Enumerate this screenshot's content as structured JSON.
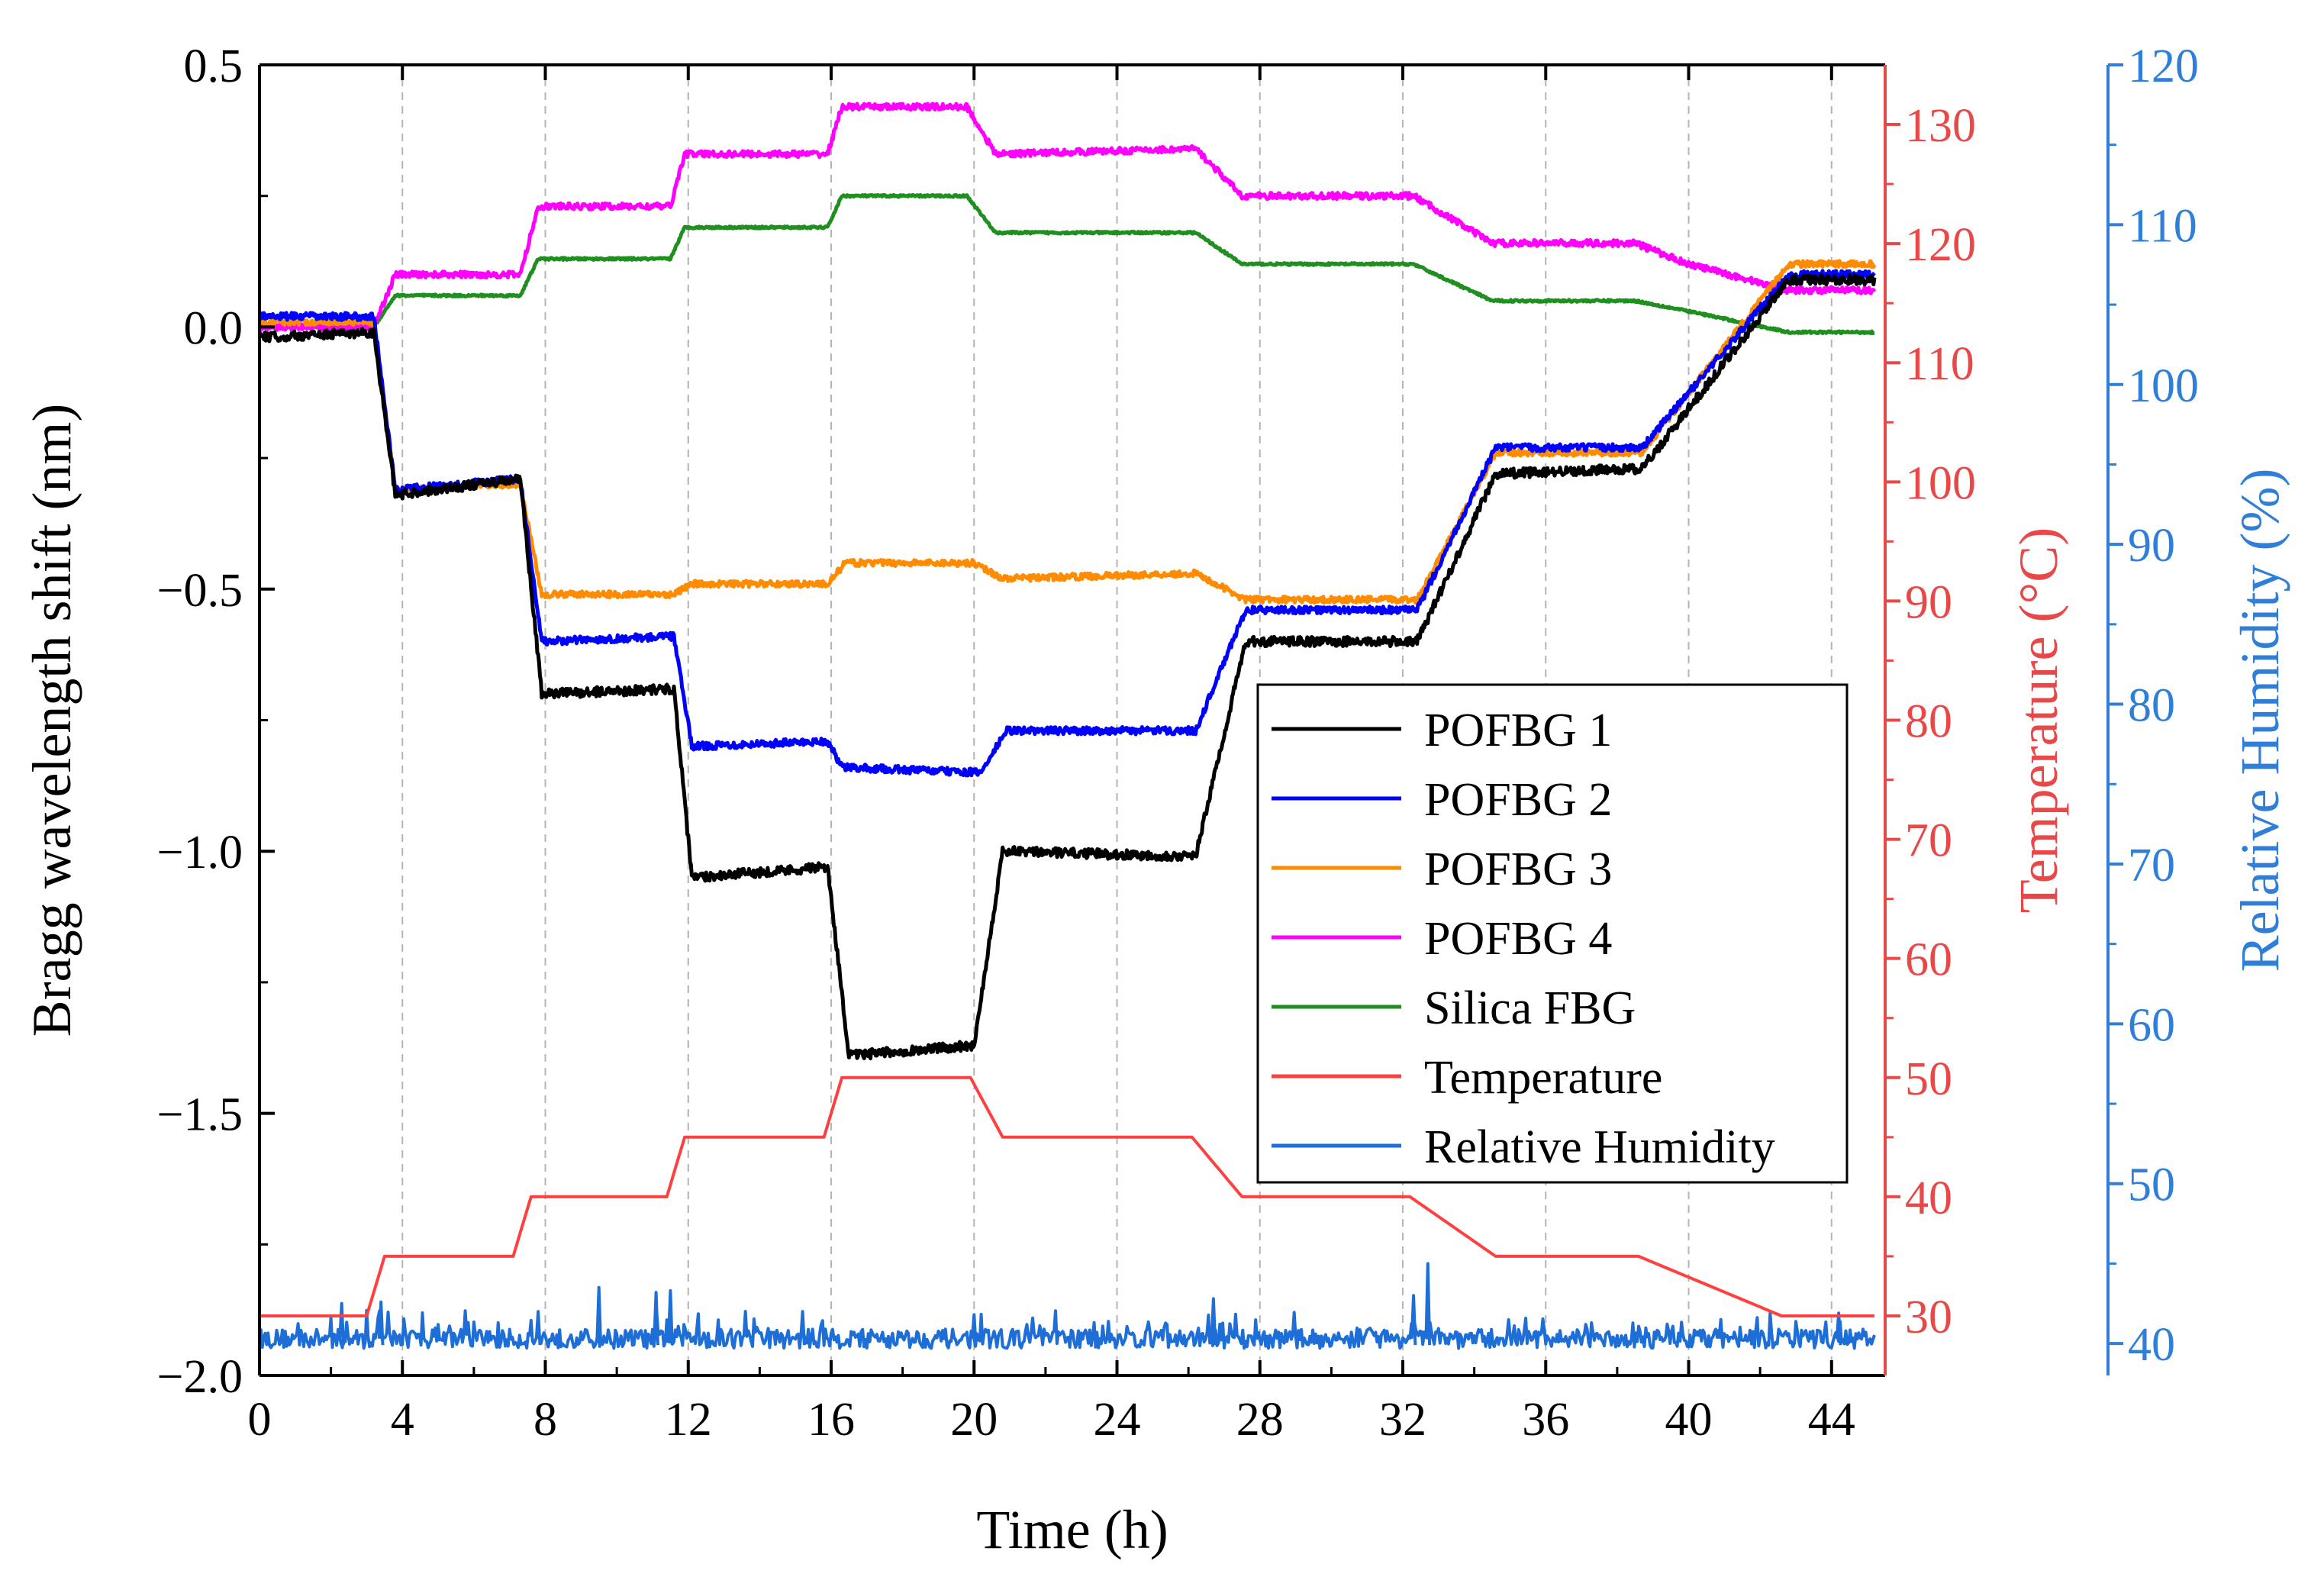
{
  "chart_data": {
    "type": "line",
    "xlabel": "Time (h)",
    "ylabel_left": "Bragg wavelength shift (nm)",
    "ylabel_right1": "Temperature (°C)",
    "ylabel_right2": "Relative Humidity (%)",
    "xlim": [
      0,
      45.5
    ],
    "ylim_left": [
      -2.0,
      0.5
    ],
    "ylim_right1": [
      25,
      135
    ],
    "ylim_right2": [
      38,
      120
    ],
    "x_ticks": [
      "0",
      "4",
      "8",
      "12",
      "16",
      "20",
      "24",
      "28",
      "32",
      "36",
      "40",
      "44"
    ],
    "y_ticks_left": [
      "0.5",
      "0.0",
      "−0.5",
      "−1.0",
      "−1.5",
      "−2.0"
    ],
    "y_ticks_right1": [
      "30",
      "40",
      "50",
      "60",
      "70",
      "80",
      "90",
      "100",
      "110",
      "120",
      "130"
    ],
    "y_ticks_right2": [
      "40",
      "50",
      "60",
      "70",
      "80",
      "90",
      "100",
      "110",
      "120"
    ],
    "grid": "vertical-dashed",
    "legend_position": "center-right",
    "series": [
      {
        "name": "POFBG 1",
        "axis": "left",
        "color": "#000000",
        "noise": 0.009,
        "points": [
          [
            0,
            -0.02
          ],
          [
            3.2,
            -0.01
          ],
          [
            3.8,
            -0.32
          ],
          [
            7.3,
            -0.29
          ],
          [
            7.9,
            -0.7
          ],
          [
            11.6,
            -0.69
          ],
          [
            12.1,
            -1.05
          ],
          [
            15.9,
            -1.03
          ],
          [
            16.5,
            -1.39
          ],
          [
            20.0,
            -1.37
          ],
          [
            20.8,
            -1.0
          ],
          [
            26.2,
            -1.01
          ],
          [
            27.6,
            -0.6
          ],
          [
            32.4,
            -0.6
          ],
          [
            34.6,
            -0.28
          ],
          [
            38.7,
            -0.27
          ],
          [
            42.8,
            0.09
          ],
          [
            45.2,
            0.09
          ]
        ]
      },
      {
        "name": "POFBG 2",
        "axis": "left",
        "color": "#0000ff",
        "noise": 0.007,
        "points": [
          [
            0,
            0.02
          ],
          [
            3.2,
            0.02
          ],
          [
            3.8,
            -0.31
          ],
          [
            7.3,
            -0.29
          ],
          [
            7.9,
            -0.6
          ],
          [
            11.6,
            -0.59
          ],
          [
            12.1,
            -0.8
          ],
          [
            15.9,
            -0.79
          ],
          [
            16.3,
            -0.84
          ],
          [
            20.2,
            -0.85
          ],
          [
            20.9,
            -0.77
          ],
          [
            26.2,
            -0.77
          ],
          [
            27.6,
            -0.54
          ],
          [
            32.4,
            -0.54
          ],
          [
            34.6,
            -0.23
          ],
          [
            38.7,
            -0.23
          ],
          [
            42.8,
            0.1
          ],
          [
            45.2,
            0.1
          ]
        ]
      },
      {
        "name": "POFBG 3",
        "axis": "left",
        "color": "#ff8c00",
        "noise": 0.006,
        "points": [
          [
            0,
            0.01
          ],
          [
            3.2,
            0.01
          ],
          [
            3.8,
            -0.31
          ],
          [
            7.3,
            -0.3
          ],
          [
            7.9,
            -0.51
          ],
          [
            11.6,
            -0.51
          ],
          [
            12.1,
            -0.49
          ],
          [
            15.9,
            -0.49
          ],
          [
            16.4,
            -0.45
          ],
          [
            20.0,
            -0.45
          ],
          [
            20.8,
            -0.48
          ],
          [
            26.2,
            -0.47
          ],
          [
            27.6,
            -0.52
          ],
          [
            32.4,
            -0.52
          ],
          [
            34.6,
            -0.24
          ],
          [
            38.7,
            -0.24
          ],
          [
            42.8,
            0.12
          ],
          [
            45.2,
            0.12
          ]
        ]
      },
      {
        "name": "POFBG 4",
        "axis": "left",
        "color": "#ff00ff",
        "noise": 0.006,
        "points": [
          [
            0,
            0.0
          ],
          [
            3.2,
            0.0
          ],
          [
            3.8,
            0.1
          ],
          [
            7.3,
            0.1
          ],
          [
            7.8,
            0.23
          ],
          [
            11.5,
            0.23
          ],
          [
            11.9,
            0.33
          ],
          [
            15.9,
            0.33
          ],
          [
            16.3,
            0.42
          ],
          [
            19.8,
            0.42
          ],
          [
            20.6,
            0.33
          ],
          [
            26.2,
            0.34
          ],
          [
            27.5,
            0.25
          ],
          [
            32.3,
            0.25
          ],
          [
            34.5,
            0.16
          ],
          [
            36.5,
            0.16
          ],
          [
            38.5,
            0.16
          ],
          [
            40.0,
            0.12
          ],
          [
            42.8,
            0.07
          ],
          [
            45.2,
            0.07
          ]
        ]
      },
      {
        "name": "Silica FBG",
        "axis": "left",
        "color": "#1f8f1f",
        "noise": 0.002,
        "points": [
          [
            0,
            0.0
          ],
          [
            3.2,
            0.0
          ],
          [
            3.8,
            0.06
          ],
          [
            7.3,
            0.06
          ],
          [
            7.8,
            0.13
          ],
          [
            11.5,
            0.13
          ],
          [
            11.9,
            0.19
          ],
          [
            15.9,
            0.19
          ],
          [
            16.3,
            0.25
          ],
          [
            19.8,
            0.25
          ],
          [
            20.6,
            0.18
          ],
          [
            26.2,
            0.18
          ],
          [
            27.5,
            0.12
          ],
          [
            32.3,
            0.12
          ],
          [
            34.5,
            0.05
          ],
          [
            38.5,
            0.05
          ],
          [
            40.0,
            0.03
          ],
          [
            42.8,
            -0.01
          ],
          [
            45.2,
            -0.01
          ]
        ]
      },
      {
        "name": "Temperature",
        "axis": "right1",
        "color": "#ff4040",
        "noise": 0,
        "points": [
          [
            0,
            30
          ],
          [
            3.0,
            30
          ],
          [
            3.5,
            35
          ],
          [
            7.1,
            35
          ],
          [
            7.6,
            40
          ],
          [
            11.4,
            40
          ],
          [
            11.9,
            45
          ],
          [
            15.8,
            45
          ],
          [
            16.3,
            50
          ],
          [
            19.9,
            50
          ],
          [
            20.8,
            45
          ],
          [
            26.1,
            45
          ],
          [
            27.5,
            40
          ],
          [
            32.2,
            40
          ],
          [
            34.6,
            35
          ],
          [
            38.6,
            35
          ],
          [
            42.6,
            30
          ],
          [
            45.2,
            30
          ]
        ]
      },
      {
        "name": "Relative Humidity",
        "axis": "right2",
        "color": "#1e6ed8",
        "noise": 0.6,
        "base": 40.3,
        "spikes": [
          [
            2.3,
            42.5
          ],
          [
            3.4,
            42.6
          ],
          [
            7.8,
            42.0
          ],
          [
            9.5,
            43.5
          ],
          [
            11.1,
            43.2
          ],
          [
            11.5,
            43.3
          ],
          [
            15.2,
            42.0
          ],
          [
            20.0,
            41.8
          ],
          [
            26.7,
            42.8
          ],
          [
            32.3,
            43.0
          ],
          [
            32.7,
            45.0
          ],
          [
            40.9,
            41.5
          ],
          [
            44.2,
            41.9
          ]
        ]
      }
    ]
  }
}
